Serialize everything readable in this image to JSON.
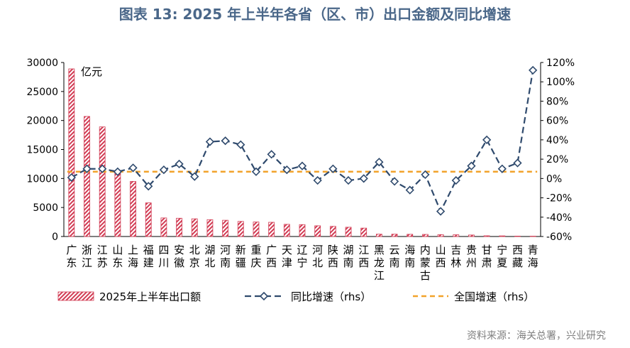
{
  "title": "图表 13: 2025 年上半年各省（区、市）出口金额及同比增速",
  "source": "资料来源：海关总署，兴业研究",
  "unit_label": "亿元",
  "colors": {
    "bar": "#d23c54",
    "line": "#2f4a6d",
    "national": "#f2a32b",
    "title": "#4a6789",
    "axis": "#000000"
  },
  "chart_data": {
    "type": "bar",
    "categories": [
      "广东",
      "浙江",
      "江苏",
      "山东",
      "上海",
      "福建",
      "四川",
      "安徽",
      "北京",
      "湖北",
      "河南",
      "新疆",
      "重庆",
      "广西",
      "天津",
      "辽宁",
      "河北",
      "陕西",
      "湖南",
      "江西",
      "黑龙江",
      "云南",
      "海南",
      "内蒙古",
      "山西",
      "吉林",
      "贵州",
      "甘肃",
      "宁夏",
      "西藏",
      "青海"
    ],
    "series": [
      {
        "name": "2025年上半年出口额",
        "axis": "left",
        "type": "bar",
        "values": [
          28900,
          20700,
          18900,
          11000,
          9500,
          5800,
          3200,
          3150,
          3050,
          2900,
          2800,
          2600,
          2500,
          2450,
          2100,
          2050,
          1850,
          1750,
          1600,
          1450,
          400,
          400,
          380,
          360,
          330,
          300,
          260,
          130,
          110,
          70,
          60
        ]
      },
      {
        "name": "同比增速（rhs）",
        "axis": "right",
        "type": "line",
        "values": [
          1,
          10,
          10,
          7,
          11,
          -8,
          9,
          15,
          2,
          38,
          39,
          35,
          7,
          25,
          9,
          13,
          -2,
          10,
          -2,
          0,
          17,
          -3,
          -12,
          4,
          -34,
          -2,
          13,
          40,
          10,
          16,
          112
        ]
      },
      {
        "name": "全国增速（rhs）",
        "axis": "right",
        "type": "line",
        "dashed": true,
        "values": [
          7,
          7,
          7,
          7,
          7,
          7,
          7,
          7,
          7,
          7,
          7,
          7,
          7,
          7,
          7,
          7,
          7,
          7,
          7,
          7,
          7,
          7,
          7,
          7,
          7,
          7,
          7,
          7,
          7,
          7,
          7
        ]
      }
    ],
    "y_left": {
      "min": 0,
      "max": 30000,
      "ticks": [
        "0",
        "5000",
        "10000",
        "15000",
        "20000",
        "25000",
        "30000"
      ]
    },
    "y_right": {
      "min": -60,
      "max": 120,
      "ticks": [
        "-60%",
        "-40%",
        "-20%",
        "0%",
        "20%",
        "40%",
        "60%",
        "80%",
        "100%",
        "120%"
      ]
    },
    "legend_position": "bottom",
    "grid": false
  }
}
